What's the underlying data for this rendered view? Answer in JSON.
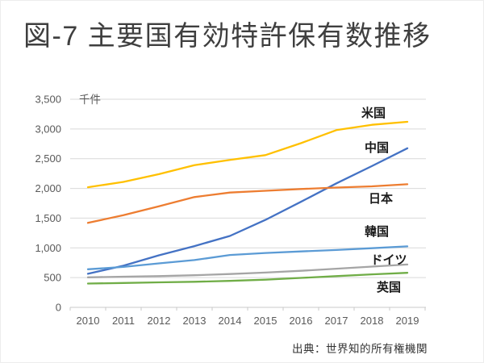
{
  "title": "図-7 主要国有効特許保有数推移",
  "source": "出典：世界知的所有権機関",
  "colors": {
    "grid": "#d9d9d9",
    "axis_line": "#c9c9c9",
    "tick_mark": "#c9c9c9",
    "axis_text": "#595959",
    "title_text": "#3f3f3f",
    "series_label_text": "#1a1a1a"
  },
  "chart_data": {
    "type": "line",
    "title": "図-7 主要国有効特許保有数推移",
    "unit_label": "千件",
    "xlabel": "",
    "ylabel": "千件",
    "x": [
      2010,
      2011,
      2012,
      2013,
      2014,
      2015,
      2016,
      2017,
      2018,
      2019
    ],
    "x_tick_labels": [
      "2010",
      "2011",
      "2012",
      "2013",
      "2014",
      "2015",
      "2016",
      "2017",
      "2018",
      "2019"
    ],
    "ylim": [
      0,
      3500
    ],
    "y_ticks": [
      0,
      500,
      1000,
      1500,
      2000,
      2500,
      3000,
      3500
    ],
    "y_tick_labels": [
      "0",
      "500",
      "1,000",
      "1,500",
      "2,000",
      "2,500",
      "3,000",
      "3,500"
    ],
    "grid": "horizontal",
    "legend_position": "labels-at-line-end",
    "series": [
      {
        "name": "米国",
        "color": "#FFC000",
        "values": [
          2020,
          2110,
          2240,
          2390,
          2480,
          2560,
          2760,
          2980,
          3070,
          3120
        ]
      },
      {
        "name": "中国",
        "color": "#4472C4",
        "values": [
          565,
          700,
          875,
          1030,
          1200,
          1470,
          1775,
          2085,
          2375,
          2675
        ]
      },
      {
        "name": "日本",
        "color": "#ED7D31",
        "values": [
          1420,
          1550,
          1700,
          1855,
          1930,
          1960,
          1990,
          2015,
          2035,
          2070
        ]
      },
      {
        "name": "韓国",
        "color": "#5B9BD5",
        "values": [
          640,
          680,
          740,
          795,
          880,
          915,
          940,
          965,
          995,
          1025
        ]
      },
      {
        "name": "ドイツ",
        "color": "#A5A5A5",
        "values": [
          505,
          515,
          525,
          540,
          560,
          585,
          615,
          650,
          685,
          720
        ]
      },
      {
        "name": "英国",
        "color": "#70AD47",
        "values": [
          400,
          410,
          420,
          430,
          445,
          465,
          495,
          525,
          555,
          580
        ]
      }
    ],
    "source": "出典：世界知的所有権機関"
  }
}
